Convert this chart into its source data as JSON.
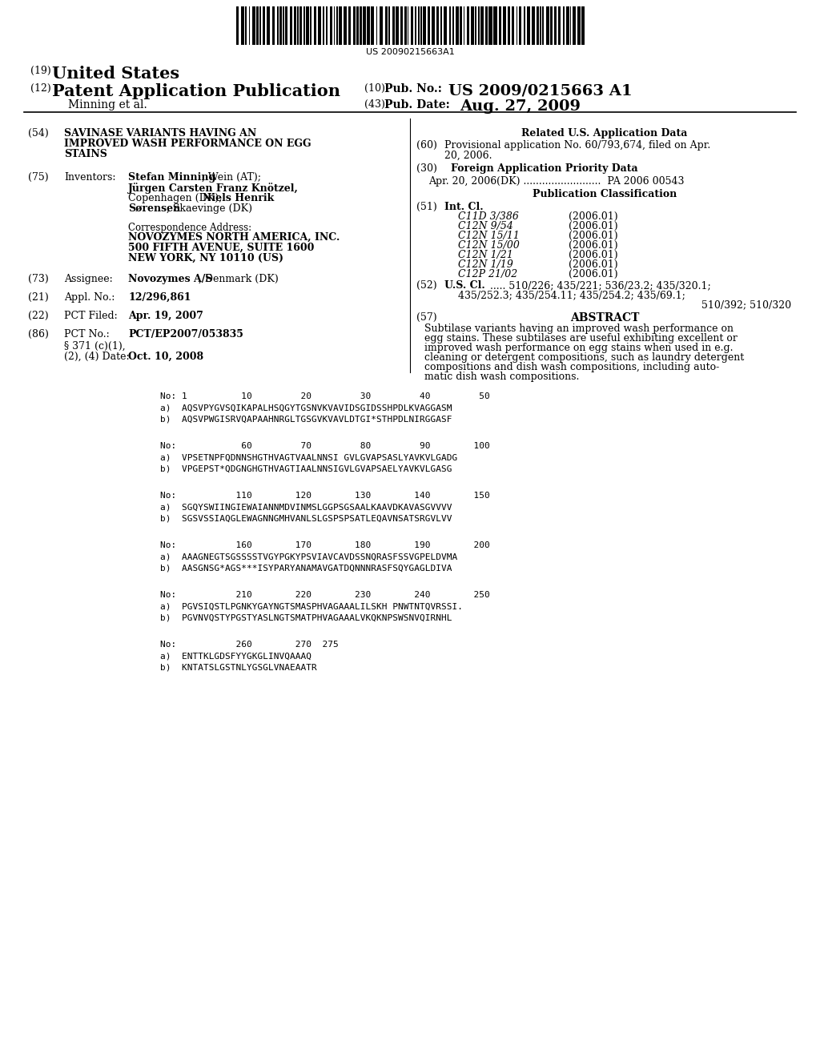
{
  "background_color": "#ffffff",
  "barcode_text": "US 20090215663A1",
  "sequences": [
    {
      "no_line": "No: 1          10         20         30         40         50",
      "a_seq": "a)  AQSVPYGVSQIKAPALHSQGYTGSNVKVAVIDSGIDSSHPDLKVAGGASM",
      "b_seq": "b)  AQSVPWGISRVQAPAAHNRGLTGSGVKVAVLDTGI*STHPDLNIRGGASF"
    },
    {
      "no_line": "No:            60         70         80         90        100",
      "a_seq": "a)  VPSETNPFQDNNSHGTHVAGTVAALNNSI GVLGVAPSASLYAVKVLGADG",
      "b_seq": "b)  VPGEPST*QDGNGHGTHVAGTIAALNNSIGVLGVAPSAELYAVKVLGASG"
    },
    {
      "no_line": "No:           110        120        130        140        150",
      "a_seq": "a)  SGQYSWIINGIEWAIANNMDVINMSLGGPSGSAALKAAVDKAVASGVVVV",
      "b_seq": "b)  SGSVSSIAQGLEWAGNNGMHVANLSLGSPSPSATLEQAVNSATSRGVLVV"
    },
    {
      "no_line": "No:           160        170        180        190        200",
      "a_seq": "a)  AAAGNEGTSGSSSSTVGYPGKYPSVIAVCAVDSSNQRASFSSVGPELDVMA",
      "b_seq": "b)  AASGNSG*AGS***ISYPARYANAMAVGATDQNNNRASFSQYGAGLDIVA"
    },
    {
      "no_line": "No:           210        220        230        240        250",
      "a_seq": "a)  PGVSIQSTLPGNKYGAYNGTSMASPHVAGAAALILSKH PNWTNTQVRSSI.",
      "b_seq": "b)  PGVNVQSTYPGSTYASLNGTSMATPHVAGAAALVKQKNPSWSNVQIRNHL"
    },
    {
      "no_line": "No:           260        270  275",
      "a_seq": "a)  ENTTKLGDSFYYGKGLINVQAAAQ",
      "b_seq": "b)  KNTATSLGSTNLYGSGLVNAEAATR"
    }
  ]
}
